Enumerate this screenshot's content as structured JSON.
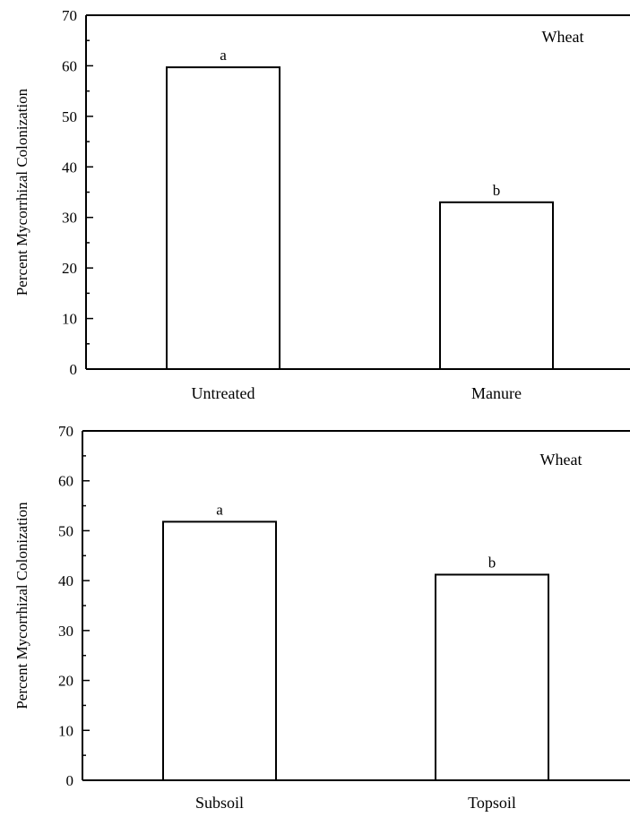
{
  "chart_data": [
    {
      "type": "bar",
      "categories": [
        "Untreated",
        "Manure"
      ],
      "values": [
        59.7,
        33
      ],
      "bar_labels": [
        "a",
        "b"
      ],
      "panel_label": "Wheat",
      "ylabel": "Percent Mycorrhizal Colonization",
      "ylim": [
        0,
        70
      ],
      "yticks": [
        "0",
        "10",
        "20",
        "30",
        "40",
        "50",
        "60",
        "70"
      ],
      "grid": false
    },
    {
      "type": "bar",
      "categories": [
        "Subsoil",
        "Topsoil"
      ],
      "values": [
        51.8,
        41.2
      ],
      "bar_labels": [
        "a",
        "b"
      ],
      "panel_label": "Wheat",
      "ylabel": "Percent Mycorrhizal Colonization",
      "ylim": [
        0,
        70
      ],
      "yticks": [
        "0",
        "10",
        "20",
        "30",
        "40",
        "50",
        "60",
        "70"
      ],
      "grid": false
    }
  ]
}
